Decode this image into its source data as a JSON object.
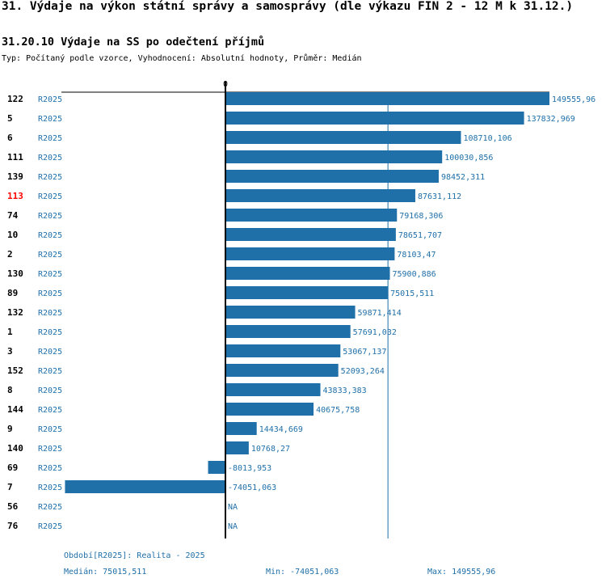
{
  "page": {
    "title": "31. Výdaje na výkon státní správy a samosprávy (dle výkazu FIN 2 - 12 M k 31.12.)",
    "subtitle": "31.20.10 Výdaje na SS po odečtení příjmů",
    "meta": "Typ: Počítaný podle vzorce, Vyhodnocení: Absolutní hodnoty, Průměr: Medián"
  },
  "colors": {
    "bar": "#1f6fa8",
    "label": "#1f6fa8",
    "highlight": "#ff0000"
  },
  "chart_data": {
    "type": "bar",
    "orientation": "horizontal",
    "zero_label": "0",
    "xlim": [
      -74051.063,
      149555.96
    ],
    "median": 75015.511,
    "rows": [
      {
        "id": "122",
        "series": "R2025",
        "value": 149555.96,
        "label": "149555,96",
        "highlight": false
      },
      {
        "id": "5",
        "series": "R2025",
        "value": 137832.969,
        "label": "137832,969",
        "highlight": false
      },
      {
        "id": "6",
        "series": "R2025",
        "value": 108710.106,
        "label": "108710,106",
        "highlight": false
      },
      {
        "id": "111",
        "series": "R2025",
        "value": 100030.856,
        "label": "100030,856",
        "highlight": false
      },
      {
        "id": "139",
        "series": "R2025",
        "value": 98452.311,
        "label": "98452,311",
        "highlight": false
      },
      {
        "id": "113",
        "series": "R2025",
        "value": 87631.112,
        "label": "87631,112",
        "highlight": true
      },
      {
        "id": "74",
        "series": "R2025",
        "value": 79168.306,
        "label": "79168,306",
        "highlight": false
      },
      {
        "id": "10",
        "series": "R2025",
        "value": 78651.707,
        "label": "78651,707",
        "highlight": false
      },
      {
        "id": "2",
        "series": "R2025",
        "value": 78103.47,
        "label": "78103,47",
        "highlight": false
      },
      {
        "id": "130",
        "series": "R2025",
        "value": 75900.886,
        "label": "75900,886",
        "highlight": false
      },
      {
        "id": "89",
        "series": "R2025",
        "value": 75015.511,
        "label": "75015,511",
        "highlight": false
      },
      {
        "id": "132",
        "series": "R2025",
        "value": 59871.414,
        "label": "59871,414",
        "highlight": false
      },
      {
        "id": "1",
        "series": "R2025",
        "value": 57691.032,
        "label": "57691,032",
        "highlight": false
      },
      {
        "id": "3",
        "series": "R2025",
        "value": 53067.137,
        "label": "53067,137",
        "highlight": false
      },
      {
        "id": "152",
        "series": "R2025",
        "value": 52093.264,
        "label": "52093,264",
        "highlight": false
      },
      {
        "id": "8",
        "series": "R2025",
        "value": 43833.383,
        "label": "43833,383",
        "highlight": false
      },
      {
        "id": "144",
        "series": "R2025",
        "value": 40675.758,
        "label": "40675,758",
        "highlight": false
      },
      {
        "id": "9",
        "series": "R2025",
        "value": 14434.669,
        "label": "14434,669",
        "highlight": false
      },
      {
        "id": "140",
        "series": "R2025",
        "value": 10768.27,
        "label": "10768,27",
        "highlight": false
      },
      {
        "id": "69",
        "series": "R2025",
        "value": -8013.953,
        "label": "-8013,953",
        "highlight": false
      },
      {
        "id": "7",
        "series": "R2025",
        "value": -74051.063,
        "label": "-74051,063",
        "highlight": false
      },
      {
        "id": "56",
        "series": "R2025",
        "value": null,
        "label": "NA",
        "highlight": false
      },
      {
        "id": "76",
        "series": "R2025",
        "value": null,
        "label": "NA",
        "highlight": false
      }
    ]
  },
  "footer": {
    "period": "Období[R2025]: Realita - 2025",
    "median": "Medián: 75015,511",
    "min": "Min: -74051,063",
    "max": "Max: 149555,96"
  }
}
